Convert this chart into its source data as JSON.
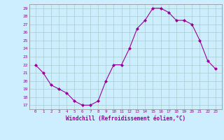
{
  "x": [
    0,
    1,
    2,
    3,
    4,
    5,
    6,
    7,
    8,
    9,
    10,
    11,
    12,
    13,
    14,
    15,
    16,
    17,
    18,
    19,
    20,
    21,
    22,
    23
  ],
  "y": [
    22,
    21,
    19.5,
    19,
    18.5,
    17.5,
    17,
    17,
    17.5,
    20,
    22,
    22,
    24,
    26.5,
    27.5,
    29,
    29,
    28.5,
    27.5,
    27.5,
    27,
    25,
    22.5,
    21.5
  ],
  "line_color": "#990099",
  "marker": "D",
  "marker_size": 2,
  "bg_color": "#cceeff",
  "grid_color": "#aacccc",
  "xlabel": "Windchill (Refroidissement éolien,°C)",
  "xlabel_color": "#990099",
  "tick_color": "#990099",
  "ylim_min": 16.5,
  "ylim_max": 29.5,
  "yticks": [
    17,
    18,
    19,
    20,
    21,
    22,
    23,
    24,
    25,
    26,
    27,
    28,
    29
  ],
  "xticks": [
    0,
    1,
    2,
    3,
    4,
    5,
    6,
    7,
    8,
    9,
    10,
    11,
    12,
    13,
    14,
    15,
    16,
    17,
    18,
    19,
    20,
    21,
    22,
    23
  ]
}
